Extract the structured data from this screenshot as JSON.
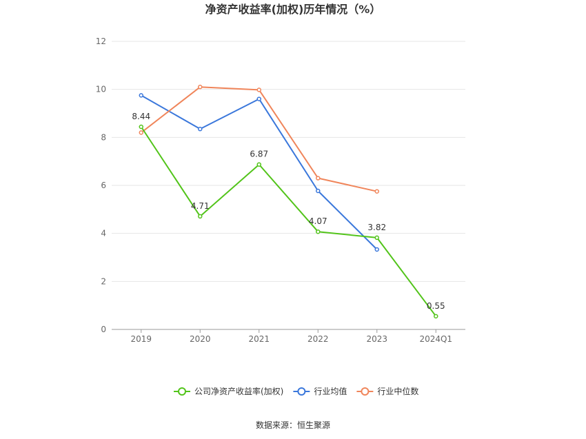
{
  "chart_data": {
    "type": "line",
    "title": "净资产收益率(加权)历年情况（%）",
    "categories": [
      "2019",
      "2020",
      "2021",
      "2022",
      "2023",
      "2024Q1"
    ],
    "ylim": [
      0,
      12
    ],
    "yticks": [
      "0",
      "2",
      "4",
      "6",
      "8",
      "10",
      "12"
    ],
    "grid": true,
    "legend_position": "bottom",
    "series": [
      {
        "name": "公司净资产收益率(加权)",
        "color": "#52c41a",
        "values": [
          8.44,
          4.71,
          6.87,
          4.07,
          3.82,
          0.55
        ],
        "labels": [
          "8.44",
          "4.71",
          "6.87",
          "4.07",
          "3.82",
          "0.55"
        ]
      },
      {
        "name": "行业均值",
        "color": "#3a77db",
        "values": [
          9.75,
          8.35,
          9.6,
          5.77,
          3.33,
          null
        ]
      },
      {
        "name": "行业中位数",
        "color": "#f0855a",
        "values": [
          8.2,
          10.1,
          9.98,
          6.3,
          5.75,
          null
        ]
      }
    ]
  },
  "source": "数据来源：恒生聚源"
}
